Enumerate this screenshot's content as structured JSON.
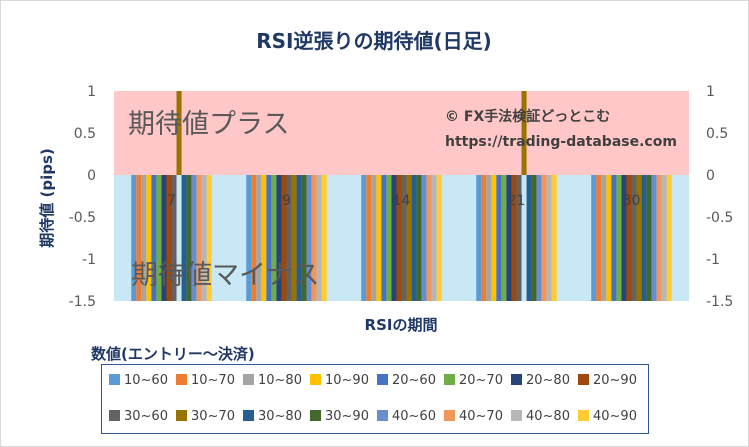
{
  "chart_data": {
    "type": "bar",
    "title": "RSI逆張りの期待値(日足)",
    "xlabel": "RSIの期間",
    "ylabel": "期待値 (pips)",
    "ylim": [
      -1.5,
      1
    ],
    "yticks": [
      "1",
      "0.5",
      "0",
      "-0.5",
      "-1",
      "-1.5"
    ],
    "categories": [
      "7",
      "9",
      "14",
      "21",
      "30"
    ],
    "legend_title": "数値(エントリー～決済)",
    "plus_zone_label": "期待値プラス",
    "minus_zone_label": "期待値マイナス",
    "watermark_line1": "© FX手法検証どっとこむ",
    "watermark_line2": "https://trading-database.com",
    "series": [
      {
        "name": "10~60",
        "color": "#5b9bd5",
        "values": [
          -1.5,
          -1.5,
          -1.5,
          -1.5,
          -1.5
        ]
      },
      {
        "name": "10~70",
        "color": "#ed7d31",
        "values": [
          -1.5,
          -1.5,
          -1.5,
          -1.5,
          -1.5
        ]
      },
      {
        "name": "10~80",
        "color": "#a5a5a5",
        "values": [
          -1.5,
          -1.5,
          -1.5,
          -1.5,
          -1.5
        ]
      },
      {
        "name": "10~90",
        "color": "#ffc000",
        "values": [
          -1.5,
          -1.5,
          -1.5,
          -1.5,
          -1.5
        ]
      },
      {
        "name": "20~60",
        "color": "#4472c4",
        "values": [
          -1.5,
          -1.5,
          -1.5,
          -1.5,
          -1.5
        ]
      },
      {
        "name": "20~70",
        "color": "#70ad47",
        "values": [
          -1.5,
          -1.5,
          -1.5,
          -1.5,
          -1.5
        ]
      },
      {
        "name": "20~80",
        "color": "#264478",
        "values": [
          -1.5,
          -1.5,
          -1.5,
          -1.5,
          -1.5
        ]
      },
      {
        "name": "20~90",
        "color": "#9e480e",
        "values": [
          -1.5,
          -1.5,
          -1.5,
          -1.5,
          -1.5
        ]
      },
      {
        "name": "30~60",
        "color": "#636363",
        "values": [
          -1.5,
          -1.5,
          -1.5,
          -1.5,
          -1.5
        ]
      },
      {
        "name": "30~70",
        "color": "#997300",
        "values": [
          1,
          -1.5,
          -1.5,
          1,
          -1.5
        ]
      },
      {
        "name": "30~80",
        "color": "#255e91",
        "values": [
          -1.5,
          -1.5,
          -1.5,
          -1.5,
          -1.5
        ]
      },
      {
        "name": "30~90",
        "color": "#43682b",
        "values": [
          -1.5,
          -1.5,
          -1.5,
          -1.5,
          -1.5
        ]
      },
      {
        "name": "40~60",
        "color": "#698ed0",
        "values": [
          -1.5,
          -1.5,
          -1.5,
          -1.5,
          -1.5
        ]
      },
      {
        "name": "40~70",
        "color": "#f1975a",
        "values": [
          -1.5,
          -1.5,
          -1.5,
          -1.5,
          -1.5
        ]
      },
      {
        "name": "40~80",
        "color": "#b7b7b7",
        "values": [
          -1.5,
          -1.5,
          -1.5,
          -1.5,
          -1.5
        ]
      },
      {
        "name": "40~90",
        "color": "#ffcd33",
        "values": [
          -1.5,
          -1.5,
          -1.5,
          -1.5,
          -1.5
        ]
      }
    ]
  }
}
